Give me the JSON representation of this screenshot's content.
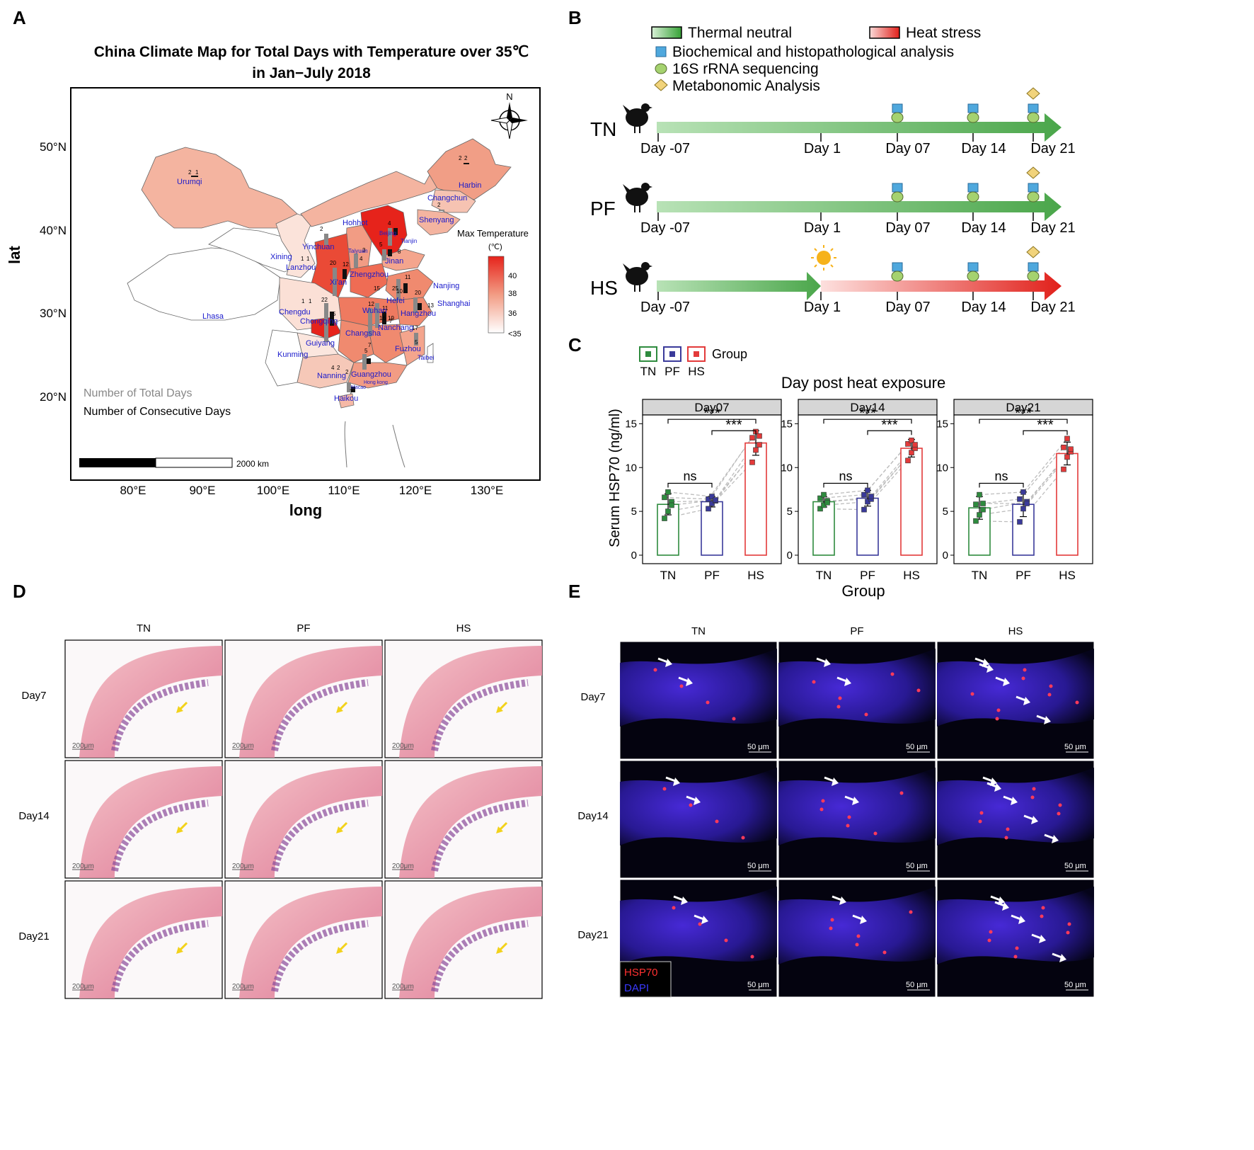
{
  "panels": {
    "A": {
      "label": "A",
      "title_line1": "China Climate Map for Total Days with Temperature over 35℃",
      "title_line2": "in Jan−July 2018",
      "xlabel": "long",
      "ylabel": "lat",
      "xticks": [
        "80°E",
        "90°E",
        "100°E",
        "110°E",
        "120°E",
        "130°E"
      ],
      "yticks": [
        "50°N",
        "40°N",
        "30°N",
        "20°N"
      ],
      "compass": "N",
      "legend_title": "Max Temperature",
      "legend_unit": "(℃)",
      "legend_ticks": [
        "40",
        "38",
        "36",
        "<35"
      ],
      "note_total": "Number of Total Days",
      "note_consecutive": "Number of Consecutive Days",
      "scalebar": "2000 km",
      "cities": [
        {
          "name": "Harbin"
        },
        {
          "name": "Changchun"
        },
        {
          "name": "Shenyang"
        },
        {
          "name": "Urumqi"
        },
        {
          "name": "Hohhot"
        },
        {
          "name": "Beijing"
        },
        {
          "name": "Tianjin"
        },
        {
          "name": "Yinchuan"
        },
        {
          "name": "Taiyuan"
        },
        {
          "name": "Jinan"
        },
        {
          "name": "Xining"
        },
        {
          "name": "Lanzhou"
        },
        {
          "name": "Xi'an"
        },
        {
          "name": "Zhengzhou"
        },
        {
          "name": "Nanjing"
        },
        {
          "name": "Hefei"
        },
        {
          "name": "Shanghai"
        },
        {
          "name": "Wuhan"
        },
        {
          "name": "Hangzhou"
        },
        {
          "name": "Lhasa"
        },
        {
          "name": "Chengdu"
        },
        {
          "name": "Chongqing"
        },
        {
          "name": "Changsha"
        },
        {
          "name": "Nanchang"
        },
        {
          "name": "Guiyang"
        },
        {
          "name": "Kunming"
        },
        {
          "name": "Fuzhou"
        },
        {
          "name": "Taibei"
        },
        {
          "name": "Nanning"
        },
        {
          "name": "Guangzhou"
        },
        {
          "name": "Hong kong"
        },
        {
          "name": "Macao"
        },
        {
          "name": "Haikou"
        }
      ],
      "bar_labels": [
        "2",
        "2",
        "2",
        "2",
        "1",
        "4",
        "3",
        "2",
        "1",
        "1",
        "5",
        "12",
        "8",
        "4",
        "11",
        "1",
        "1",
        "12",
        "15",
        "11",
        "22",
        "20",
        "25",
        "10",
        "19",
        "16",
        "5",
        "20",
        "17",
        "7",
        "7",
        "5",
        "13",
        "4",
        "2",
        "2",
        "7",
        "5"
      ]
    },
    "B": {
      "label": "B",
      "legend": {
        "thermal": "Thermal neutral",
        "heat": "Heat stress",
        "biochem": "Biochemical and histopathological analysis",
        "rrna": "16S rRNA sequencing",
        "metab": "Metabonomic Analysis"
      },
      "rows": [
        {
          "group": "TN",
          "days": [
            "Day -07",
            "Day 1",
            "Day 07",
            "Day 14",
            "Day 21"
          ]
        },
        {
          "group": "PF",
          "days": [
            "Day -07",
            "Day 1",
            "Day 07",
            "Day 14",
            "Day 21"
          ]
        },
        {
          "group": "HS",
          "days": [
            "Day -07",
            "Day 1",
            "Day 07",
            "Day 14",
            "Day 21"
          ]
        }
      ]
    },
    "C": {
      "label": "C",
      "legend_title": "Group",
      "groups": [
        "TN",
        "PF",
        "HS"
      ],
      "main_title": "Day post heat exposure",
      "ylabel": "Serum HSP70 (ng/ml)",
      "xlabel": "Group",
      "yticks": [
        "0",
        "5",
        "10",
        "15"
      ],
      "sig_ns": "ns",
      "sig_star": "***",
      "colors": {
        "TN": "#2e8b3e",
        "PF": "#3a3a9a",
        "HS": "#e33a3a"
      }
    },
    "D": {
      "label": "D",
      "cols": [
        "TN",
        "PF",
        "HS"
      ],
      "rows": [
        "Day7",
        "Day14",
        "Day21"
      ],
      "scale": "200μm"
    },
    "E": {
      "label": "E",
      "cols": [
        "TN",
        "PF",
        "HS"
      ],
      "rows": [
        "Day7",
        "Day14",
        "Day21"
      ],
      "scale": "50 μm",
      "legend_hsp": "HSP70",
      "legend_dapi": "DAPI"
    }
  },
  "chart_data": [
    {
      "type": "bar",
      "panel": "C-Day07",
      "title": "Day07",
      "categories": [
        "TN",
        "PF",
        "HS"
      ],
      "values": [
        5.8,
        6.1,
        12.8
      ],
      "errors": [
        1.2,
        0.6,
        1.4
      ],
      "points": [
        [
          4.2,
          5.0,
          6.1,
          6.6,
          7.2,
          5.7
        ],
        [
          5.3,
          5.9,
          6.2,
          6.4,
          6.7,
          6.3
        ],
        [
          10.6,
          12.0,
          12.6,
          13.4,
          14.1,
          13.6
        ]
      ],
      "ylabel": "Serum HSP70 (ng/ml)",
      "xlabel": "Group",
      "ylim": [
        0,
        16
      ]
    },
    {
      "type": "bar",
      "panel": "C-Day14",
      "title": "Day14",
      "categories": [
        "TN",
        "PF",
        "HS"
      ],
      "values": [
        6.1,
        6.5,
        12.2
      ],
      "errors": [
        0.6,
        0.9,
        1.0
      ],
      "points": [
        [
          5.3,
          5.7,
          6.2,
          6.5,
          6.9,
          6.0
        ],
        [
          5.2,
          6.1,
          6.4,
          6.9,
          7.4,
          6.7
        ],
        [
          10.8,
          11.7,
          12.2,
          12.7,
          13.1,
          12.6
        ]
      ],
      "ylabel": "Serum HSP70 (ng/ml)",
      "xlabel": "Group",
      "ylim": [
        0,
        16
      ]
    },
    {
      "type": "bar",
      "panel": "C-Day21",
      "title": "Day21",
      "categories": [
        "TN",
        "PF",
        "HS"
      ],
      "values": [
        5.4,
        5.8,
        11.6
      ],
      "errors": [
        1.3,
        1.4,
        1.3
      ],
      "points": [
        [
          3.9,
          4.6,
          5.2,
          5.8,
          6.9,
          5.9
        ],
        [
          3.8,
          5.3,
          6.1,
          6.4,
          7.2,
          5.9
        ],
        [
          9.8,
          11.2,
          11.8,
          12.3,
          13.3,
          12.1
        ]
      ],
      "ylabel": "Serum HSP70 (ng/ml)",
      "xlabel": "Group",
      "ylim": [
        0,
        16
      ]
    }
  ]
}
